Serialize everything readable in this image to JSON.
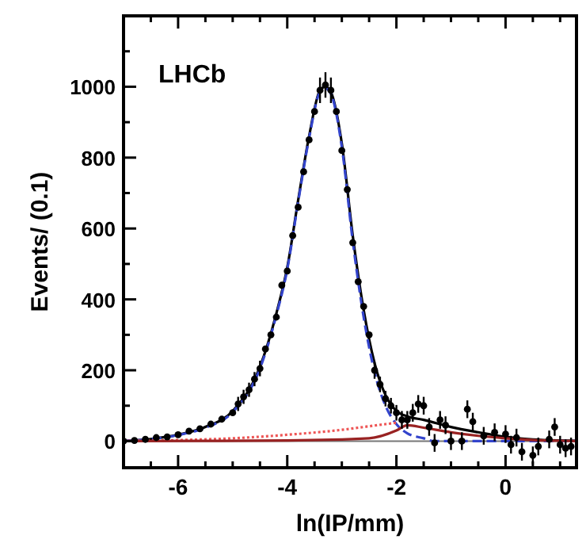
{
  "chart_data": {
    "type": "scatter",
    "ylabel": "Events/ (0.1)",
    "xlabel": "ln(IP/mm)",
    "annotations": [
      "LHCb"
    ],
    "xlim": [
      -7,
      1.3
    ],
    "xticks": [
      {
        "value": -6.5,
        "label": null
      },
      -6,
      {
        "value": -5.5,
        "label": null
      },
      {
        "value": -5,
        "label": null
      },
      {
        "value": -4.5,
        "label": null
      },
      -4,
      {
        "value": -3.5,
        "label": null
      },
      {
        "value": -3,
        "label": null
      },
      {
        "value": -2.5,
        "label": null
      },
      -2,
      {
        "value": -1.5,
        "label": null
      },
      {
        "value": -1,
        "label": null
      },
      {
        "value": -0.5,
        "label": null
      },
      0,
      {
        "value": 0.5,
        "label": null
      },
      {
        "value": 1,
        "label": null
      }
    ],
    "ylim": [
      -75,
      1200
    ],
    "yticks": [
      0,
      {
        "value": 100,
        "label": null
      },
      200,
      {
        "value": 300,
        "label": null
      },
      400,
      {
        "value": 500,
        "label": null
      },
      600,
      {
        "value": 700,
        "label": null
      },
      800,
      {
        "value": 900,
        "label": null
      },
      1000,
      {
        "value": 1100,
        "label": null
      }
    ],
    "ref_lines": [
      {
        "axis": "y",
        "value": 0,
        "color": "#777777"
      }
    ],
    "series": [
      {
        "type": "line",
        "marker": "none",
        "color": "#000000",
        "line_style": "solid",
        "x": [
          -7,
          -6.5,
          -6,
          -5.5,
          -5,
          -4.5,
          -4.2,
          -4,
          -3.8,
          -3.6,
          -3.4,
          -3.3,
          -3.2,
          -3,
          -2.8,
          -2.6,
          -2.4,
          -2.2,
          -2,
          -1.8,
          -1.5,
          -1,
          -0.5,
          0,
          0.5,
          1,
          1.3
        ],
        "values": [
          0,
          6,
          18,
          40,
          85,
          210,
          360,
          490,
          680,
          860,
          990,
          1000,
          985,
          840,
          580,
          370,
          220,
          130,
          85,
          70,
          60,
          40,
          25,
          12,
          5,
          2,
          1
        ]
      },
      {
        "type": "line",
        "marker": "none",
        "color": "#3344cc",
        "line_style": "dashed",
        "x": [
          -7,
          -6.5,
          -6,
          -5.5,
          -5,
          -4.5,
          -4.2,
          -4,
          -3.8,
          -3.6,
          -3.4,
          -3.3,
          -3.2,
          -3,
          -2.8,
          -2.6,
          -2.4,
          -2.2,
          -2,
          -1.8,
          -1.5,
          -1.3,
          1.3
        ],
        "values": [
          0,
          6,
          17,
          38,
          82,
          205,
          355,
          485,
          675,
          855,
          985,
          995,
          980,
          830,
          565,
          350,
          195,
          100,
          48,
          22,
          8,
          0,
          0
        ]
      },
      {
        "type": "line",
        "marker": "none",
        "color": "#ee5555",
        "line_style": "dotted",
        "x": [
          -7,
          -6,
          -5,
          -4,
          -3,
          -2.5,
          -2.2,
          -2
        ],
        "values": [
          0,
          3,
          8,
          18,
          32,
          42,
          48,
          52
        ]
      },
      {
        "type": "line",
        "marker": "none",
        "color": "#992222",
        "line_style": "solid",
        "x": [
          -7,
          -4,
          -2.5,
          -2,
          -1.8,
          -1.5,
          -1,
          -0.5,
          0,
          0.5,
          1,
          1.3
        ],
        "values": [
          0,
          2,
          8,
          30,
          45,
          38,
          25,
          15,
          8,
          3,
          1,
          0
        ]
      },
      {
        "marker": "circle",
        "color": "#000000",
        "x": [
          -7,
          -6.8,
          -6.6,
          -6.4,
          -6.2,
          -6,
          -5.8,
          -5.6,
          -5.4,
          -5.2,
          -5,
          -4.9,
          -4.8,
          -4.7,
          -4.6,
          -4.5,
          -4.4,
          -4.3,
          -4.2,
          -4.1,
          -4,
          -3.9,
          -3.8,
          -3.7,
          -3.6,
          -3.5,
          -3.4,
          -3.3,
          -3.2,
          -3.1,
          -3,
          -2.9,
          -2.8,
          -2.7,
          -2.6,
          -2.5,
          -2.4,
          -2.3,
          -2.2,
          -2.1,
          -2,
          -1.9,
          -1.8,
          -1.7,
          -1.6,
          -1.5,
          -1.4,
          -1.3,
          -1.2,
          -1.1,
          -1,
          -0.8,
          -0.7,
          -0.6,
          -0.4,
          -0.2,
          0,
          0.1,
          0.2,
          0.3,
          0.5,
          0.6,
          0.8,
          0.9,
          1,
          1.1,
          1.2
        ],
        "values": [
          0,
          2,
          5,
          10,
          12,
          18,
          28,
          35,
          48,
          62,
          80,
          105,
          125,
          145,
          175,
          205,
          260,
          300,
          350,
          440,
          480,
          580,
          660,
          760,
          850,
          930,
          990,
          1005,
          990,
          930,
          820,
          710,
          560,
          450,
          380,
          300,
          200,
          160,
          120,
          100,
          80,
          60,
          60,
          80,
          105,
          100,
          40,
          -5,
          60,
          45,
          0,
          0,
          90,
          55,
          15,
          25,
          20,
          -10,
          10,
          -30,
          -40,
          -15,
          5,
          40,
          -10,
          -20,
          -15
        ],
        "errors": [
          null,
          null,
          null,
          null,
          null,
          null,
          null,
          null,
          null,
          null,
          null,
          20,
          20,
          20,
          20,
          22,
          null,
          null,
          null,
          null,
          null,
          null,
          null,
          null,
          null,
          null,
          36,
          36,
          36,
          null,
          null,
          null,
          null,
          null,
          null,
          null,
          24,
          22,
          22,
          22,
          22,
          25,
          25,
          25,
          25,
          25,
          25,
          25,
          25,
          25,
          25,
          25,
          25,
          25,
          25,
          25,
          25,
          25,
          25,
          25,
          25,
          25,
          25,
          25,
          25,
          25,
          25
        ]
      }
    ]
  }
}
